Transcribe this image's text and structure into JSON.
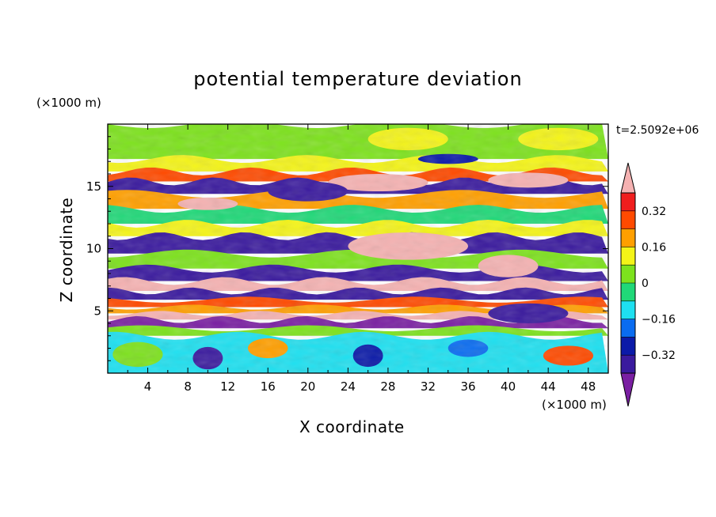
{
  "title": "potential temperature deviation",
  "timestamp": "t=2.5092e+06",
  "x_axis": {
    "label": "X coordinate",
    "unit": "(×1000 m)"
  },
  "y_axis": {
    "label": "Z coordinate",
    "unit": "(×1000 m)"
  },
  "chart_data": {
    "type": "heatmap",
    "title": "potential temperature deviation",
    "xlabel": "X coordinate",
    "ylabel": "Z coordinate",
    "x_unit": "(×1000 m)",
    "y_unit": "(×1000 m)",
    "xlim": [
      0,
      50
    ],
    "ylim": [
      0,
      20
    ],
    "x_ticks": [
      4,
      8,
      12,
      16,
      20,
      24,
      28,
      32,
      36,
      40,
      44,
      48
    ],
    "y_ticks": [
      5,
      10,
      15
    ],
    "colorbar": {
      "levels": [
        -0.4,
        -0.32,
        -0.24,
        -0.16,
        -0.08,
        0,
        0.08,
        0.16,
        0.24,
        0.32,
        0.4
      ],
      "labeled_ticks": [
        "0.32",
        "0.16",
        "0",
        "−0.16",
        "−0.32"
      ],
      "labeled_values": [
        0.32,
        0.16,
        0,
        -0.16,
        -0.32
      ],
      "colors": [
        "#7a1fa2",
        "#3a1a9e",
        "#0b1aa8",
        "#0a6cf0",
        "#1ee0f0",
        "#20d878",
        "#7de21d",
        "#f4f418",
        "#ff9f00",
        "#ff4a00",
        "#f01e1e",
        "#f5b2b2"
      ],
      "extend": "both"
    },
    "bands": [
      {
        "z_min": 17.2,
        "z_max": 20.0,
        "level": 0.04
      },
      {
        "z_min": 16.2,
        "z_max": 17.2,
        "level": 0.12
      },
      {
        "z_min": 15.4,
        "z_max": 16.2,
        "level": 0.28
      },
      {
        "z_min": 14.4,
        "z_max": 15.4,
        "level": -0.36
      },
      {
        "z_min": 13.2,
        "z_max": 14.4,
        "level": 0.2
      },
      {
        "z_min": 12.0,
        "z_max": 13.2,
        "level": -0.08
      },
      {
        "z_min": 11.0,
        "z_max": 12.0,
        "level": 0.12
      },
      {
        "z_min": 9.6,
        "z_max": 11.0,
        "level": -0.36
      },
      {
        "z_min": 8.4,
        "z_max": 9.6,
        "level": 0.04
      },
      {
        "z_min": 7.4,
        "z_max": 8.4,
        "level": -0.36
      },
      {
        "z_min": 6.6,
        "z_max": 7.4,
        "level": 0.44
      },
      {
        "z_min": 5.9,
        "z_max": 6.6,
        "level": -0.36
      },
      {
        "z_min": 5.3,
        "z_max": 5.9,
        "level": 0.28
      },
      {
        "z_min": 4.8,
        "z_max": 5.3,
        "level": 0.16
      },
      {
        "z_min": 4.3,
        "z_max": 4.8,
        "level": 0.44
      },
      {
        "z_min": 3.6,
        "z_max": 4.3,
        "level": -0.44
      },
      {
        "z_min": 3.0,
        "z_max": 3.6,
        "level": 0.04
      },
      {
        "z_min": 0.0,
        "z_max": 3.0,
        "level": -0.12
      }
    ],
    "blobs": [
      {
        "x": 30,
        "z": 10.2,
        "rx": 6,
        "rz": 1.1,
        "level": 0.44
      },
      {
        "x": 40,
        "z": 8.6,
        "rx": 3,
        "rz": 0.9,
        "level": 0.44
      },
      {
        "x": 27,
        "z": 15.3,
        "rx": 5,
        "rz": 0.7,
        "level": 0.44
      },
      {
        "x": 42,
        "z": 15.5,
        "rx": 4,
        "rz": 0.6,
        "level": 0.44
      },
      {
        "x": 10,
        "z": 13.6,
        "rx": 3,
        "rz": 0.5,
        "level": 0.44
      },
      {
        "x": 20,
        "z": 14.6,
        "rx": 4,
        "rz": 0.8,
        "level": -0.36
      },
      {
        "x": 42,
        "z": 4.8,
        "rx": 4,
        "rz": 0.8,
        "level": -0.36
      },
      {
        "x": 10,
        "z": 1.2,
        "rx": 1.5,
        "rz": 0.9,
        "level": -0.36
      },
      {
        "x": 26,
        "z": 1.4,
        "rx": 1.5,
        "rz": 0.9,
        "level": -0.28
      },
      {
        "x": 46,
        "z": 1.4,
        "rx": 2.5,
        "rz": 0.8,
        "level": 0.28
      },
      {
        "x": 3,
        "z": 1.5,
        "rx": 2.5,
        "rz": 1.0,
        "level": 0.04
      },
      {
        "x": 16,
        "z": 2.0,
        "rx": 2.0,
        "rz": 0.8,
        "level": 0.2
      },
      {
        "x": 36,
        "z": 2.0,
        "rx": 2.0,
        "rz": 0.7,
        "level": -0.2
      },
      {
        "x": 30,
        "z": 18.8,
        "rx": 4,
        "rz": 0.9,
        "level": 0.12
      },
      {
        "x": 45,
        "z": 18.8,
        "rx": 4,
        "rz": 0.9,
        "level": 0.12
      },
      {
        "x": 34,
        "z": 17.2,
        "rx": 3,
        "rz": 0.4,
        "level": -0.28
      }
    ]
  }
}
